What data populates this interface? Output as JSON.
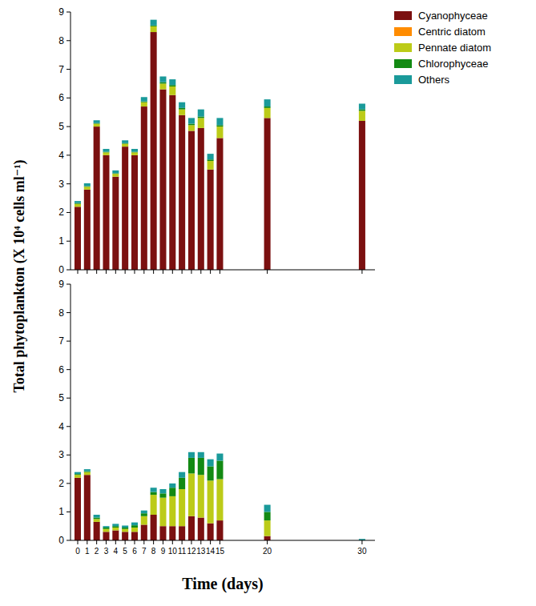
{
  "chart_data": [
    {
      "type": "bar",
      "stacked": true,
      "legend": "right",
      "tick_labels": "y",
      "y_label": "Total phytoplankton (X 10⁴ cells ml⁻¹)",
      "x": [
        0,
        1,
        2,
        3,
        4,
        5,
        6,
        7,
        8,
        9,
        10,
        11,
        12,
        13,
        14,
        15,
        20,
        30
      ],
      "xlim": [
        -0.76,
        31.36
      ],
      "xticks": [
        0,
        1,
        2,
        3,
        4,
        5,
        6,
        7,
        8,
        9,
        10,
        11,
        12,
        13,
        14,
        15,
        20,
        30
      ],
      "ylim": [
        0,
        9
      ],
      "yticks": [
        0,
        1,
        2,
        3,
        4,
        5,
        6,
        7,
        8,
        9
      ],
      "series": [
        {
          "name": "Cyanophyceae",
          "color": "#7b1010",
          "values": [
            2.2,
            2.8,
            5.0,
            4.0,
            3.25,
            4.3,
            4.0,
            5.7,
            8.3,
            6.3,
            6.1,
            5.4,
            4.85,
            4.95,
            3.5,
            4.6,
            5.3,
            5.2
          ]
        },
        {
          "name": "Centric diatom",
          "color": "#ff8c00",
          "values": [
            0,
            0,
            0,
            0,
            0,
            0,
            0,
            0,
            0,
            0,
            0,
            0,
            0,
            0,
            0,
            0,
            0,
            0
          ]
        },
        {
          "name": "Pennate diatom",
          "color": "#bccb18",
          "values": [
            0.1,
            0.1,
            0.1,
            0.1,
            0.1,
            0.1,
            0.1,
            0.15,
            0.2,
            0.2,
            0.3,
            0.2,
            0.2,
            0.35,
            0.3,
            0.4,
            0.35,
            0.35
          ]
        },
        {
          "name": "Chlorophyceae",
          "color": "#138a13",
          "values": [
            0.03,
            0.02,
            0.02,
            0.02,
            0.02,
            0.02,
            0.02,
            0.03,
            0.03,
            0.05,
            0.05,
            0.05,
            0.05,
            0.05,
            0.05,
            0.05,
            0.05,
            0.05
          ]
        },
        {
          "name": "Others",
          "color": "#1a9a9a",
          "values": [
            0.07,
            0.1,
            0.1,
            0.1,
            0.1,
            0.1,
            0.1,
            0.15,
            0.2,
            0.2,
            0.2,
            0.2,
            0.2,
            0.25,
            0.2,
            0.25,
            0.25,
            0.2
          ]
        }
      ]
    },
    {
      "type": "bar",
      "stacked": true,
      "x_label": "Time (days)",
      "x": [
        0,
        1,
        2,
        3,
        4,
        5,
        6,
        7,
        8,
        9,
        10,
        11,
        12,
        13,
        14,
        15,
        20,
        30
      ],
      "xlim": [
        -0.76,
        31.36
      ],
      "xticks": [
        0,
        1,
        2,
        3,
        4,
        5,
        6,
        7,
        8,
        9,
        10,
        11,
        12,
        13,
        14,
        15,
        20,
        30
      ],
      "ylim": [
        0,
        9
      ],
      "yticks": [
        0,
        1,
        2,
        3,
        4,
        5,
        6,
        7,
        8,
        9
      ],
      "series": [
        {
          "color": "#7b1010",
          "values": [
            2.2,
            2.3,
            0.65,
            0.3,
            0.35,
            0.3,
            0.3,
            0.55,
            0.9,
            0.5,
            0.5,
            0.5,
            0.85,
            0.8,
            0.6,
            0.7,
            0.15,
            0
          ]
        },
        {
          "color": "#ff8c00",
          "values": [
            0,
            0,
            0,
            0,
            0,
            0,
            0,
            0,
            0,
            0,
            0,
            0,
            0,
            0,
            0,
            0,
            0,
            0
          ]
        },
        {
          "color": "#bccb18",
          "values": [
            0.1,
            0.1,
            0.1,
            0.1,
            0.1,
            0.1,
            0.15,
            0.3,
            0.7,
            1.0,
            1.05,
            1.3,
            1.5,
            1.5,
            1.5,
            1.45,
            0.55,
            0
          ]
        },
        {
          "color": "#138a13",
          "values": [
            0.03,
            0.03,
            0.05,
            0.05,
            0.05,
            0.05,
            0.08,
            0.1,
            0.1,
            0.15,
            0.3,
            0.4,
            0.55,
            0.6,
            0.5,
            0.65,
            0.3,
            0
          ]
        },
        {
          "color": "#1a9a9a",
          "values": [
            0.07,
            0.07,
            0.1,
            0.05,
            0.08,
            0.07,
            0.1,
            0.1,
            0.15,
            0.15,
            0.15,
            0.2,
            0.2,
            0.2,
            0.25,
            0.25,
            0.25,
            0.05
          ]
        }
      ]
    }
  ]
}
